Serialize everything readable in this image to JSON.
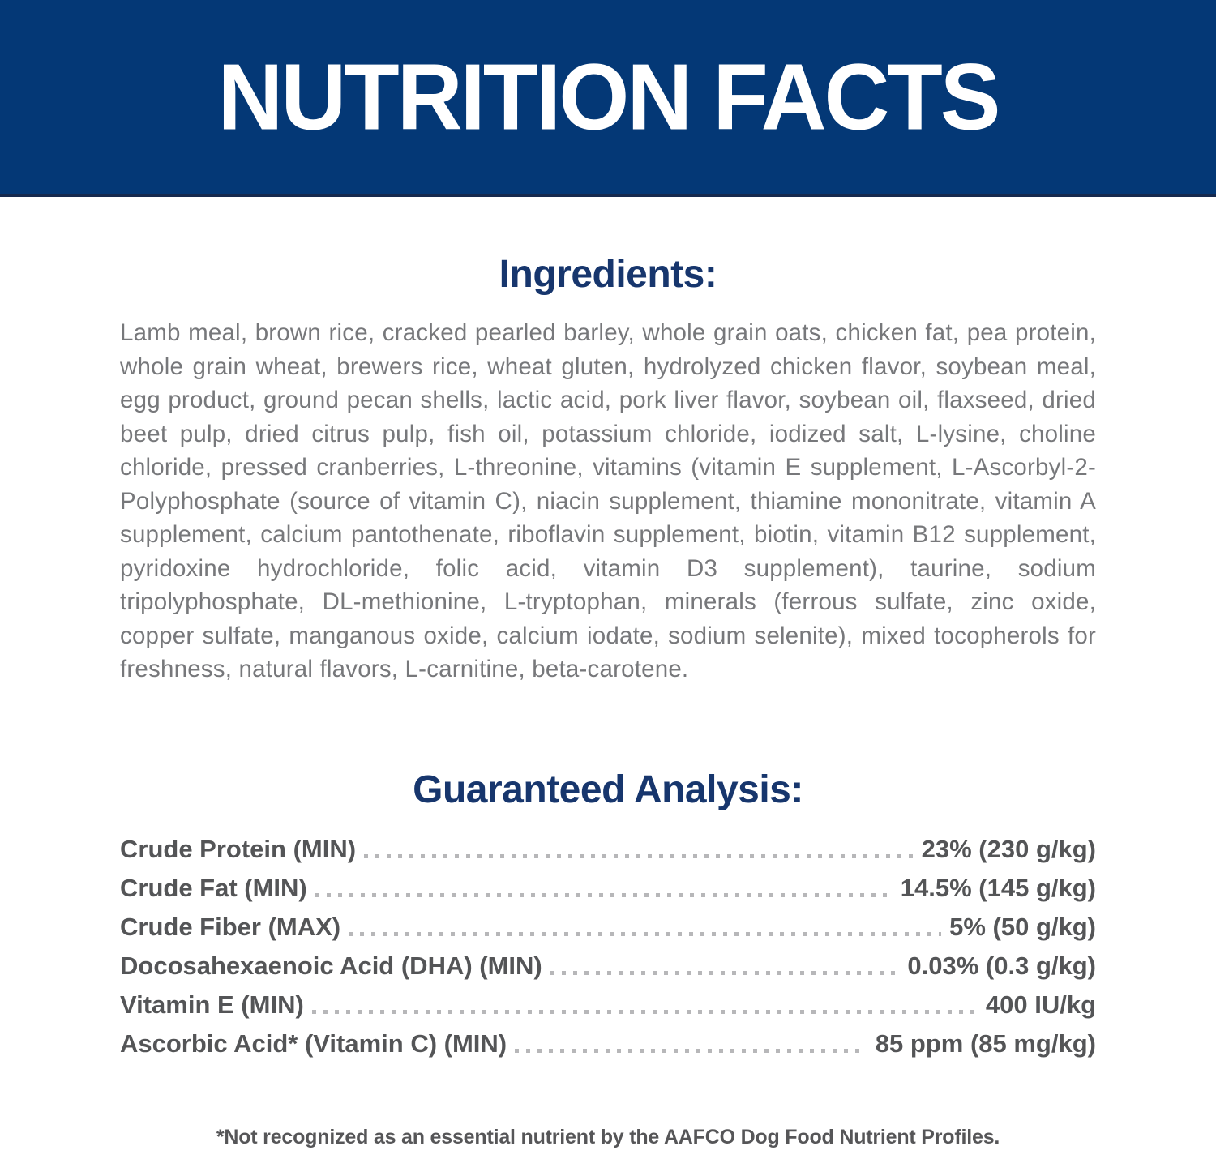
{
  "colors": {
    "header_background": "#043876",
    "header_text": "#ffffff",
    "section_heading_text": "#17366d",
    "ingredients_body_text": "#77787b",
    "analysis_text": "#545557",
    "leader_dots": "#b7b7b9"
  },
  "header": {
    "title": "NUTRITION FACTS"
  },
  "ingredients": {
    "heading": "Ingredients:",
    "text": "Lamb meal, brown rice, cracked pearled barley, whole grain oats, chicken fat, pea protein, whole grain wheat, brewers rice, wheat gluten, hydrolyzed chicken flavor, soybean meal, egg product, ground pecan shells, lactic acid, pork liver flavor, soybean oil, flaxseed, dried beet pulp, dried citrus pulp, fish oil, potassium chloride, iodized salt, L-lysine, choline chloride, pressed cranberries, L-threonine, vitamins (vitamin E supplement, L-Ascorbyl-2-Polyphosphate (source of vitamin C), niacin supplement, thiamine mononitrate, vitamin A supplement, calcium pantothenate, riboflavin supplement, biotin, vitamin B12 supplement, pyridoxine hydrochloride, folic acid, vitamin D3 supplement), taurine, sodium tripolyphosphate, DL-methionine, L-tryptophan, minerals (ferrous sulfate, zinc oxide, copper sulfate, manganous oxide, calcium iodate, sodium selenite), mixed tocopherols for freshness, natural flavors, L-carnitine, beta-carotene."
  },
  "guaranteed_analysis": {
    "heading": "Guaranteed Analysis:",
    "rows": [
      {
        "label": "Crude Protein (MIN)",
        "value": "23% (230 g/kg)"
      },
      {
        "label": "Crude Fat (MIN)",
        "value": "14.5% (145 g/kg)"
      },
      {
        "label": "Crude Fiber (MAX)",
        "value": "5% (50 g/kg)"
      },
      {
        "label": "Docosahexaenoic Acid (DHA) (MIN)",
        "value": "0.03% (0.3 g/kg)"
      },
      {
        "label": "Vitamin E (MIN)",
        "value": "400 IU/kg"
      },
      {
        "label": "Ascorbic Acid* (Vitamin C) (MIN)",
        "value": "85 ppm (85 mg/kg)"
      }
    ]
  },
  "footnote": "*Not recognized as an essential nutrient by the AAFCO Dog Food Nutrient Profiles."
}
